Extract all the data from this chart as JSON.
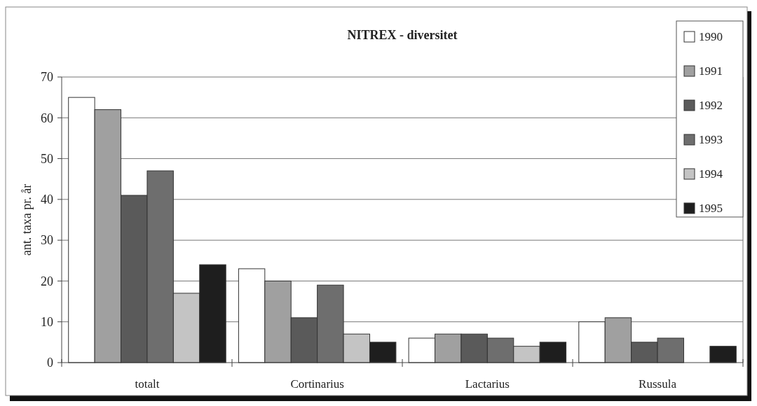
{
  "chart_data": {
    "type": "bar",
    "title": "NITREX - diversitet",
    "ylabel": "ant. taxa pr. år",
    "categories": [
      "totalt",
      "Cortinarius",
      "Lactarius",
      "Russula"
    ],
    "series": [
      {
        "name": "1990",
        "color": "#ffffff",
        "values": [
          65,
          23,
          6,
          10
        ]
      },
      {
        "name": "1991",
        "color": "#a0a0a0",
        "values": [
          62,
          20,
          7,
          11
        ]
      },
      {
        "name": "1992",
        "color": "#5a5a5a",
        "values": [
          41,
          11,
          7,
          5
        ]
      },
      {
        "name": "1993",
        "color": "#6e6e6e",
        "values": [
          47,
          19,
          6,
          6
        ]
      },
      {
        "name": "1994",
        "color": "#c4c4c4",
        "values": [
          17,
          7,
          4,
          null
        ]
      },
      {
        "name": "1995",
        "color": "#1e1e1e",
        "values": [
          24,
          5,
          5,
          4
        ]
      }
    ],
    "ylim": [
      0,
      70
    ],
    "yticks": [
      0,
      10,
      20,
      30,
      40,
      50,
      60,
      70
    ],
    "grid": "y",
    "legend": "top right"
  }
}
